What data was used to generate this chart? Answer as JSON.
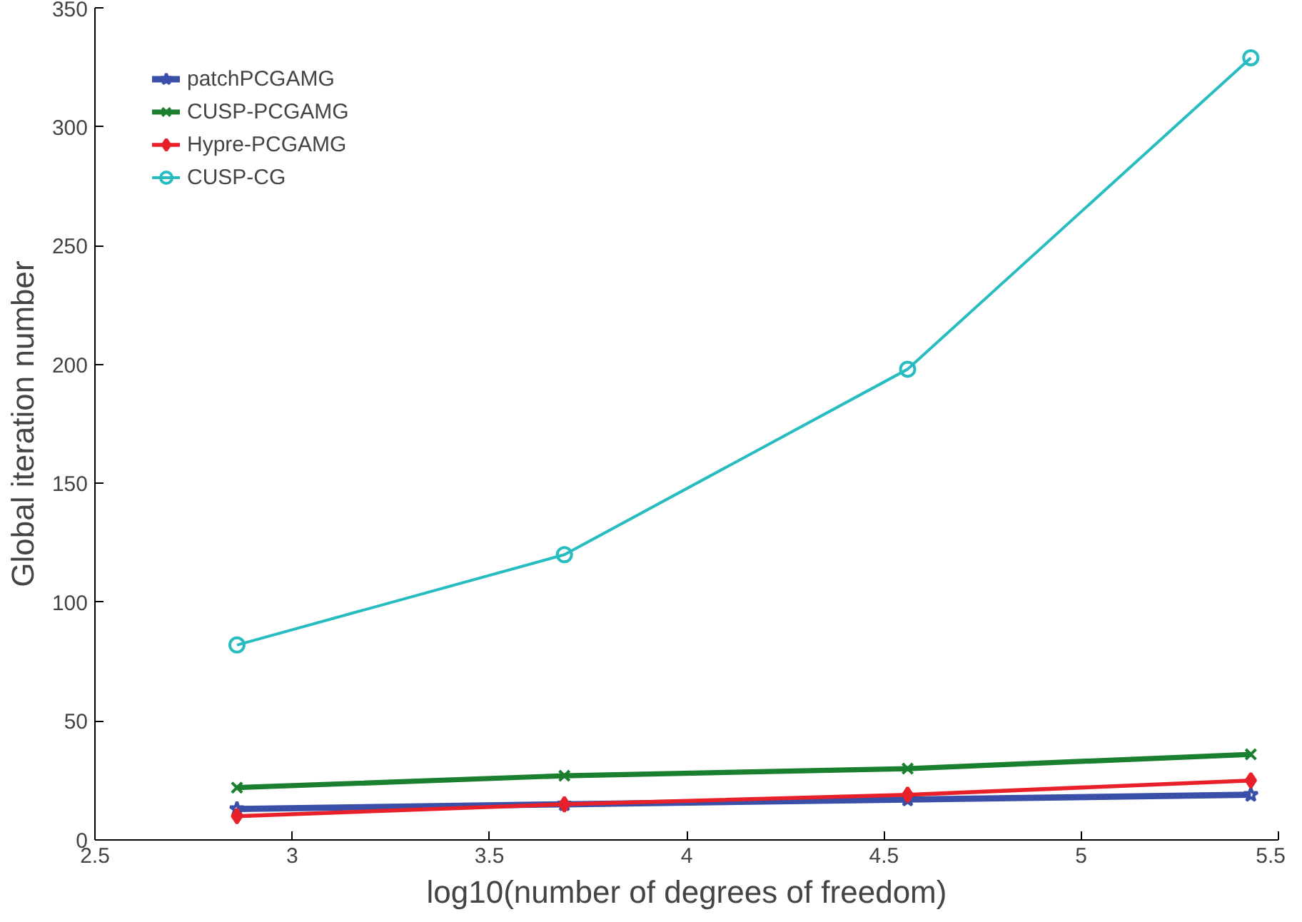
{
  "chart_data": {
    "type": "line",
    "xlabel": "log10(number of degrees of freedom)",
    "ylabel": "Global iteration number",
    "x": [
      2.86,
      3.69,
      4.56,
      5.43
    ],
    "series": [
      {
        "name": "patchPCGAMG",
        "color": "#3a4fa8",
        "marker": "star",
        "values": [
          13,
          15,
          17,
          19
        ]
      },
      {
        "name": "CUSP-PCGAMG",
        "color": "#1a7f2e",
        "marker": "cross",
        "values": [
          22,
          27,
          30,
          36
        ]
      },
      {
        "name": "Hypre-PCGAMG",
        "color": "#e8202a",
        "marker": "diamond",
        "values": [
          10,
          15,
          19,
          25
        ]
      },
      {
        "name": "CUSP-CG",
        "color": "#27bcc0",
        "marker": "circle",
        "values": [
          82,
          120,
          198,
          329
        ]
      }
    ],
    "xlim": [
      2.5,
      5.5
    ],
    "xticks": [
      2.5,
      3,
      3.5,
      4,
      4.5,
      5,
      5.5
    ],
    "ylim": [
      0,
      350
    ],
    "yticks": [
      0,
      50,
      100,
      150,
      200,
      250,
      300,
      350
    ],
    "grid": false,
    "legend": "top left",
    "line_style": "solid"
  }
}
